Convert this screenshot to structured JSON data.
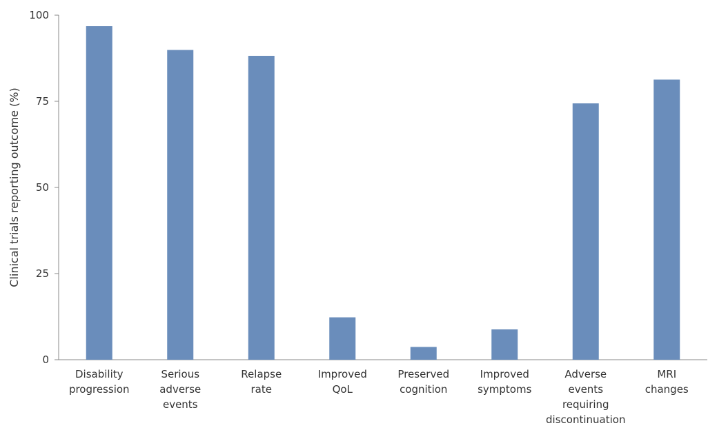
{
  "chart_data": {
    "type": "bar",
    "categories": [
      [
        "Disability",
        "progression"
      ],
      [
        "Serious",
        "adverse",
        "events"
      ],
      [
        "Relapse",
        "rate"
      ],
      [
        "Improved",
        "QoL"
      ],
      [
        "Preserved",
        "cognition"
      ],
      [
        "Improved",
        "symptoms"
      ],
      [
        "Adverse",
        "events",
        "requiring",
        "discontinuation"
      ],
      [
        "MRI",
        "changes"
      ]
    ],
    "values": [
      96.8,
      89.9,
      88.2,
      12.3,
      3.7,
      8.8,
      74.4,
      81.3
    ],
    "ylabel": "Clinical trials reporting outcome (%)",
    "ylim": [
      0,
      100
    ],
    "yticks": [
      0,
      25,
      50,
      75,
      100
    ],
    "grid": false,
    "bar_color": "#6a8dbb",
    "axis_color": "#888888"
  }
}
